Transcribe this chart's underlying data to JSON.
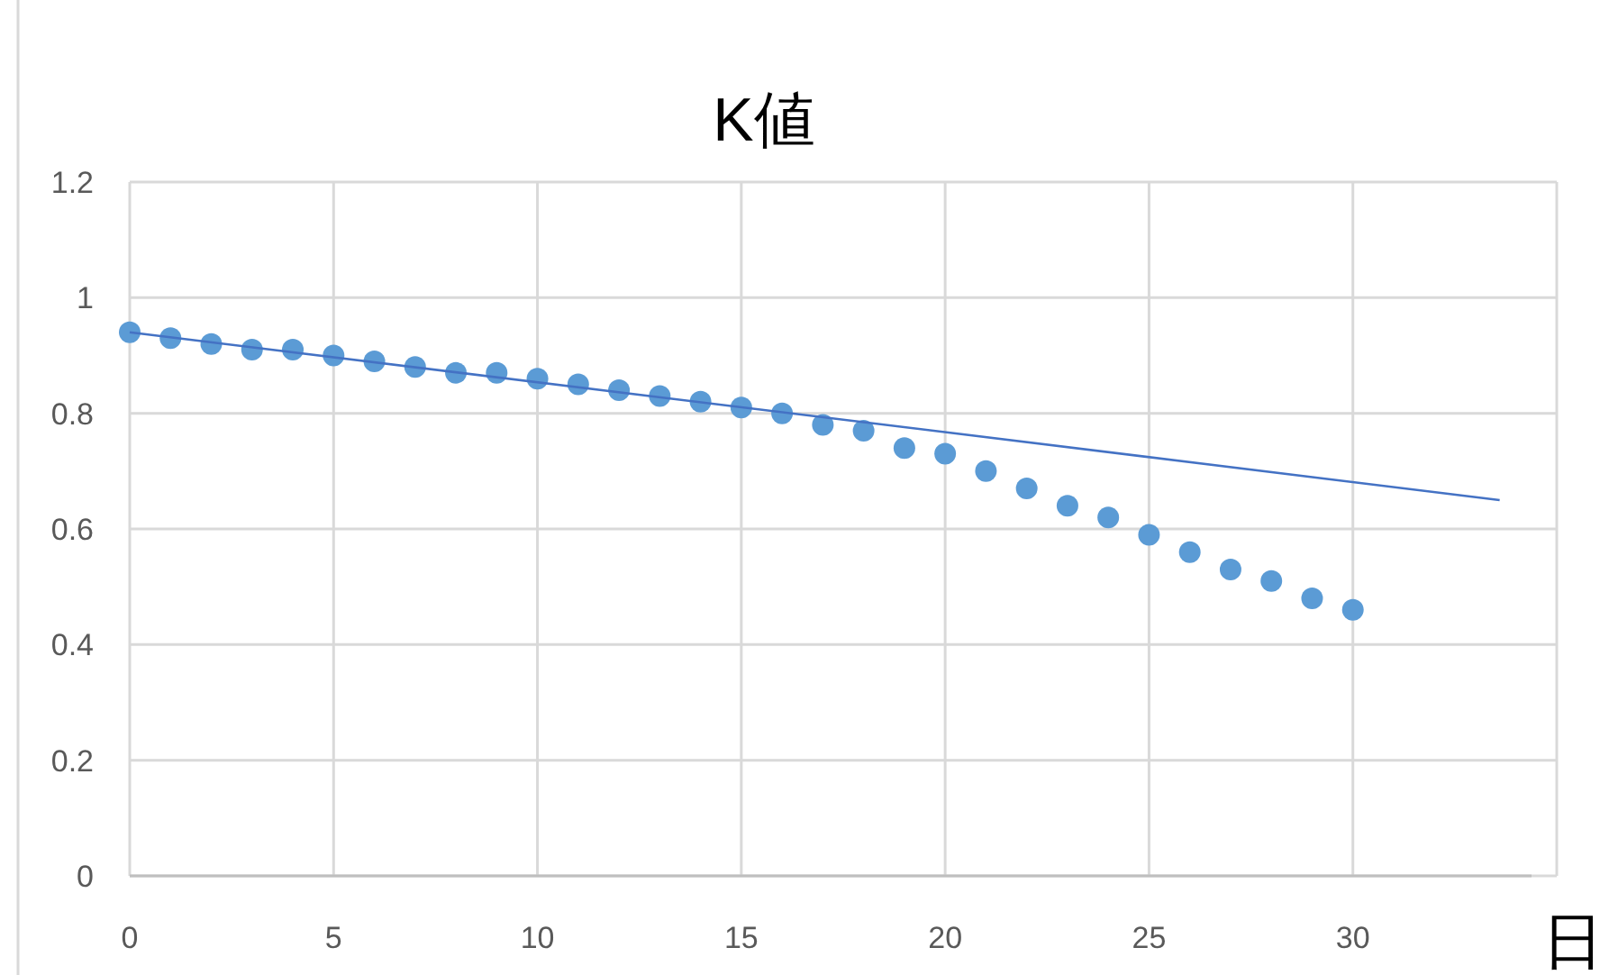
{
  "chart_data": {
    "type": "scatter",
    "title": "K値",
    "xlabel": "日",
    "x": [
      0,
      1,
      2,
      3,
      4,
      5,
      6,
      7,
      8,
      9,
      10,
      11,
      12,
      13,
      14,
      15,
      16,
      17,
      18,
      19,
      20,
      21,
      22,
      23,
      24,
      25,
      26,
      27,
      28,
      29,
      30
    ],
    "series": [
      {
        "color": "#5b9bd5",
        "marker": "circle",
        "values": [
          0.94,
          0.93,
          0.92,
          0.91,
          0.91,
          0.9,
          0.89,
          0.88,
          0.87,
          0.87,
          0.86,
          0.85,
          0.84,
          0.83,
          0.82,
          0.81,
          0.8,
          0.78,
          0.77,
          0.74,
          0.73,
          0.7,
          0.67,
          0.64,
          0.62,
          0.59,
          0.56,
          0.53,
          0.51,
          0.48,
          0.46
        ]
      },
      {
        "type": "line",
        "color": "#4472c4",
        "marker": "none",
        "x": [
          0,
          33.6
        ],
        "values": [
          0.94,
          0.65
        ]
      }
    ],
    "xlim": [
      0,
      35
    ],
    "xticks": [
      0,
      5,
      10,
      15,
      20,
      25,
      30
    ],
    "ylim": [
      0,
      1.2
    ],
    "yticks": [
      0,
      0.2,
      0.4,
      0.6,
      0.8,
      1,
      1.2
    ],
    "grid": true
  }
}
